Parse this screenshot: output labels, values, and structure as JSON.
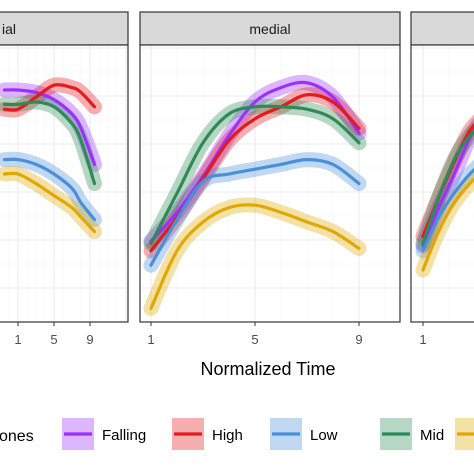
{
  "chart_data": {
    "type": "line",
    "xlabel": "Normalized Time",
    "legend": {
      "title_fragment": "ones",
      "placement": "bottom"
    },
    "panels": [
      {
        "label": "ial"
      },
      {
        "label": "medial"
      },
      {
        "label": ""
      }
    ],
    "x_ticks": [
      1,
      5,
      9
    ],
    "xlim": [
      0.6,
      9.4
    ],
    "ylim": [
      0,
      10
    ],
    "grid": true,
    "series": [
      {
        "name": "Falling",
        "color": "#9B30FF"
      },
      {
        "name": "High",
        "color": "#E41A1C"
      },
      {
        "name": "Low",
        "color": "#4A90D9"
      },
      {
        "name": "Mid",
        "color": "#2E8B57"
      },
      {
        "name": "",
        "color": "#E0A800"
      }
    ],
    "panel_series": [
      {
        "x": [
          -0.5,
          1,
          3,
          5,
          7,
          8,
          9.5
        ],
        "lines": [
          {
            "series": "Falling",
            "y": [
              8.5,
              8.5,
              8.4,
              8.1,
              7.5,
              6.9,
              5.4
            ]
          },
          {
            "series": "High",
            "y": [
              7.7,
              7.7,
              8.2,
              8.7,
              8.6,
              8.4,
              7.8
            ]
          },
          {
            "series": "Low",
            "y": [
              5.6,
              5.6,
              5.4,
              5.0,
              4.4,
              3.8,
              3.1
            ]
          },
          {
            "series": "Mid",
            "y": [
              7.9,
              7.9,
              8.0,
              7.8,
              7.1,
              6.4,
              4.6
            ]
          },
          {
            "series": "",
            "y": [
              5.0,
              5.0,
              4.6,
              4.1,
              3.6,
              3.2,
              2.6
            ]
          }
        ]
      },
      {
        "x": [
          1,
          2,
          3,
          4,
          5,
          6,
          7,
          8,
          9
        ],
        "lines": [
          {
            "series": "Falling",
            "y": [
              2.2,
              3.4,
              4.9,
              6.6,
              8.0,
              8.6,
              8.8,
              8.2,
              6.7
            ]
          },
          {
            "series": "High",
            "y": [
              1.8,
              3.2,
              4.8,
              6.4,
              7.3,
              7.8,
              8.3,
              8.0,
              6.9
            ]
          },
          {
            "series": "Low",
            "y": [
              1.2,
              3.1,
              4.7,
              5.0,
              5.2,
              5.4,
              5.6,
              5.4,
              4.6
            ]
          },
          {
            "series": "Mid",
            "y": [
              2.1,
              4.2,
              6.3,
              7.5,
              7.8,
              7.8,
              7.7,
              7.3,
              6.3
            ]
          },
          {
            "series": "",
            "y": [
              -0.6,
              1.8,
              3.0,
              3.6,
              3.7,
              3.4,
              3.0,
              2.6,
              1.9
            ]
          }
        ]
      },
      {
        "x": [
          1,
          1.6,
          2.2,
          2.8,
          3.4
        ],
        "lines": [
          {
            "series": "Falling",
            "y": [
              2.0,
              3.6,
              5.0,
              6.5,
              7.5
            ]
          },
          {
            "series": "High",
            "y": [
              2.4,
              4.0,
              5.5,
              6.8,
              7.5
            ]
          },
          {
            "series": "Low",
            "y": [
              1.8,
              3.2,
              4.2,
              5.0,
              5.6
            ]
          },
          {
            "series": "Mid",
            "y": [
              2.1,
              4.0,
              5.6,
              6.6,
              7.2
            ]
          },
          {
            "series": "",
            "y": [
              1.0,
              2.6,
              3.8,
              4.6,
              5.2
            ]
          }
        ]
      }
    ]
  }
}
